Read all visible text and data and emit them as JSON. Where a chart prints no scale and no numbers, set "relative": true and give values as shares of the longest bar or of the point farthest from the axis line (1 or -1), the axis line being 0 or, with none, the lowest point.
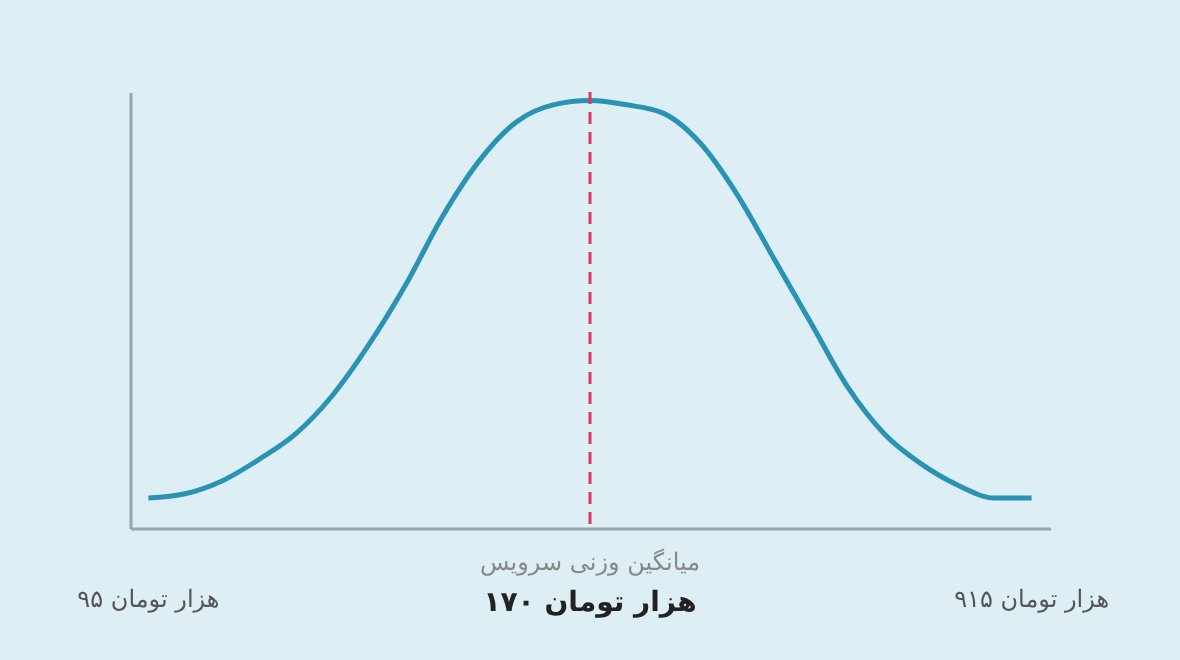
{
  "chart_data": {
    "type": "line",
    "relative": true,
    "categories": [
      "۹۵ هزار تومان",
      null,
      null,
      null,
      null,
      null,
      null,
      null,
      null,
      null,
      null,
      null,
      "۱۷۰ هزار تومان",
      null,
      null,
      null,
      null,
      null,
      null,
      null,
      null,
      null,
      null,
      null,
      "۹۱۵ هزار تومان"
    ],
    "series": [
      {
        "color": "#2a93b5",
        "values": [
          0.07,
          0.08,
          0.11,
          0.16,
          0.22,
          0.31,
          0.43,
          0.57,
          0.73,
          0.86,
          0.95,
          0.99,
          1,
          0.99,
          0.97,
          0.9,
          0.78,
          0.63,
          0.48,
          0.33,
          0.22,
          0.15,
          0.1,
          0.07,
          0.07
        ]
      }
    ],
    "ref_lines": [
      {
        "axis": "x",
        "value": "۱۷۰ هزار تومان",
        "label": "میانگین وزنی سرویس",
        "color": "#e0365a",
        "line_style": "dashed"
      }
    ],
    "grid": false,
    "marker": "none",
    "line_style": "solid"
  }
}
